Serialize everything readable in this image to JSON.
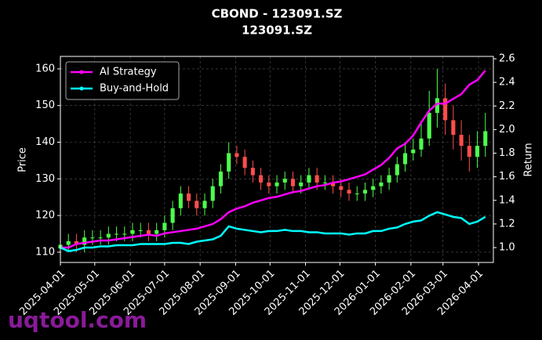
{
  "chart_data": {
    "type": "candlestick",
    "title": "CBOND - 123091.SZ",
    "subtitle": "123091.SZ",
    "y_label": "Price",
    "y2_label": "Return",
    "watermark": "uqtool.com",
    "x": [
      "2025-04-01",
      "2025-04-08",
      "2025-04-15",
      "2025-04-22",
      "2025-04-29",
      "2025-05-06",
      "2025-05-13",
      "2025-05-20",
      "2025-05-27",
      "2025-06-03",
      "2025-06-10",
      "2025-06-17",
      "2025-06-24",
      "2025-07-01",
      "2025-07-08",
      "2025-07-15",
      "2025-07-22",
      "2025-07-29",
      "2025-08-05",
      "2025-08-12",
      "2025-08-19",
      "2025-08-26",
      "2025-09-02",
      "2025-09-09",
      "2025-09-16",
      "2025-09-23",
      "2025-09-30",
      "2025-10-07",
      "2025-10-14",
      "2025-10-21",
      "2025-10-28",
      "2025-11-04",
      "2025-11-11",
      "2025-11-18",
      "2025-11-25",
      "2025-12-02",
      "2025-12-09",
      "2025-12-16",
      "2025-12-23",
      "2025-12-30",
      "2026-01-06",
      "2026-01-13",
      "2026-01-20",
      "2026-01-27",
      "2026-02-03",
      "2026-02-10",
      "2026-02-17",
      "2026-02-24",
      "2026-03-03",
      "2026-03-10",
      "2026-03-17",
      "2026-03-24",
      "2026-03-31",
      "2026-04-07"
    ],
    "open": [
      111,
      112,
      113,
      112,
      114,
      114,
      114,
      115,
      115,
      115,
      116,
      116,
      115,
      116,
      118,
      122,
      126,
      124,
      122,
      124,
      128,
      132,
      137,
      136,
      133,
      131,
      129,
      128,
      129,
      130,
      128,
      129,
      131,
      129,
      129,
      128,
      127,
      126,
      126,
      127,
      128,
      129,
      131,
      134,
      137,
      138,
      141,
      148,
      152,
      146,
      142,
      139,
      136,
      139
    ],
    "high": [
      114,
      115,
      115,
      116,
      116,
      116,
      117,
      117,
      117,
      118,
      118,
      118,
      118,
      120,
      124,
      128,
      128,
      126,
      126,
      130,
      134,
      140,
      139,
      138,
      135,
      133,
      131,
      131,
      132,
      132,
      131,
      133,
      133,
      131,
      131,
      130,
      129,
      128,
      129,
      130,
      131,
      133,
      136,
      140,
      141,
      145,
      154,
      160,
      156,
      150,
      146,
      142,
      143,
      148
    ],
    "low": [
      109,
      110,
      110,
      110,
      112,
      112,
      112,
      113,
      113,
      113,
      114,
      113,
      113,
      114,
      116,
      120,
      122,
      120,
      120,
      122,
      126,
      130,
      134,
      131,
      129,
      127,
      126,
      126,
      127,
      126,
      126,
      127,
      127,
      127,
      126,
      125,
      124,
      124,
      124,
      125,
      126,
      127,
      129,
      132,
      135,
      136,
      139,
      144,
      142,
      138,
      135,
      132,
      133,
      136
    ],
    "close": [
      112,
      113,
      112,
      114,
      114,
      114,
      115,
      115,
      115,
      116,
      116,
      115,
      116,
      118,
      122,
      126,
      124,
      122,
      124,
      128,
      132,
      137,
      136,
      133,
      131,
      129,
      128,
      129,
      130,
      128,
      129,
      131,
      129,
      129,
      128,
      127,
      126,
      126,
      127,
      128,
      129,
      131,
      134,
      137,
      138,
      141,
      148,
      152,
      146,
      142,
      139,
      136,
      139,
      143
    ],
    "up_color": "#4dff4d",
    "down_color": "#ff4d4d",
    "series": [
      {
        "name": "AI Strategy",
        "color": "#ff00ff",
        "axis": "y2",
        "values": [
          1.0,
          1.0,
          1.03,
          1.04,
          1.05,
          1.06,
          1.06,
          1.07,
          1.08,
          1.09,
          1.1,
          1.11,
          1.1,
          1.12,
          1.13,
          1.14,
          1.15,
          1.16,
          1.18,
          1.2,
          1.24,
          1.3,
          1.33,
          1.35,
          1.38,
          1.4,
          1.42,
          1.43,
          1.45,
          1.47,
          1.48,
          1.5,
          1.52,
          1.53,
          1.55,
          1.56,
          1.58,
          1.6,
          1.62,
          1.66,
          1.7,
          1.76,
          1.84,
          1.88,
          1.95,
          2.06,
          2.16,
          2.22,
          2.22,
          2.26,
          2.3,
          2.38,
          2.42,
          2.5
        ]
      },
      {
        "name": "Buy-and-Hold",
        "color": "#00ffff",
        "axis": "y2",
        "values": [
          1.0,
          0.97,
          0.98,
          1.0,
          1.0,
          1.01,
          1.01,
          1.02,
          1.02,
          1.02,
          1.03,
          1.03,
          1.03,
          1.03,
          1.04,
          1.04,
          1.03,
          1.05,
          1.06,
          1.07,
          1.1,
          1.18,
          1.16,
          1.15,
          1.14,
          1.13,
          1.14,
          1.14,
          1.15,
          1.14,
          1.14,
          1.13,
          1.13,
          1.12,
          1.12,
          1.12,
          1.11,
          1.12,
          1.12,
          1.14,
          1.14,
          1.16,
          1.17,
          1.2,
          1.22,
          1.23,
          1.27,
          1.3,
          1.28,
          1.26,
          1.25,
          1.2,
          1.22,
          1.26
        ]
      }
    ],
    "xlim": [
      "2025-04-01",
      "2026-04-14"
    ],
    "xticks": [
      "2025-04-01",
      "2025-05-01",
      "2025-06-01",
      "2025-07-01",
      "2025-08-01",
      "2025-09-01",
      "2025-10-01",
      "2025-11-01",
      "2025-12-01",
      "2026-01-01",
      "2026-02-01",
      "2026-03-01",
      "2026-04-01"
    ],
    "ylim": [
      107.2,
      163.4
    ],
    "yticks": [
      110,
      120,
      130,
      140,
      150,
      160
    ],
    "y2lim": [
      0.874,
      2.62
    ],
    "y2ticks": [
      {
        "value": 1,
        "label": "1.0"
      },
      1.2,
      1.4,
      1.6,
      1.8,
      {
        "value": 2,
        "label": "2.0"
      },
      2.2,
      2.4,
      2.6
    ],
    "grid": true,
    "legend": "upper left"
  }
}
